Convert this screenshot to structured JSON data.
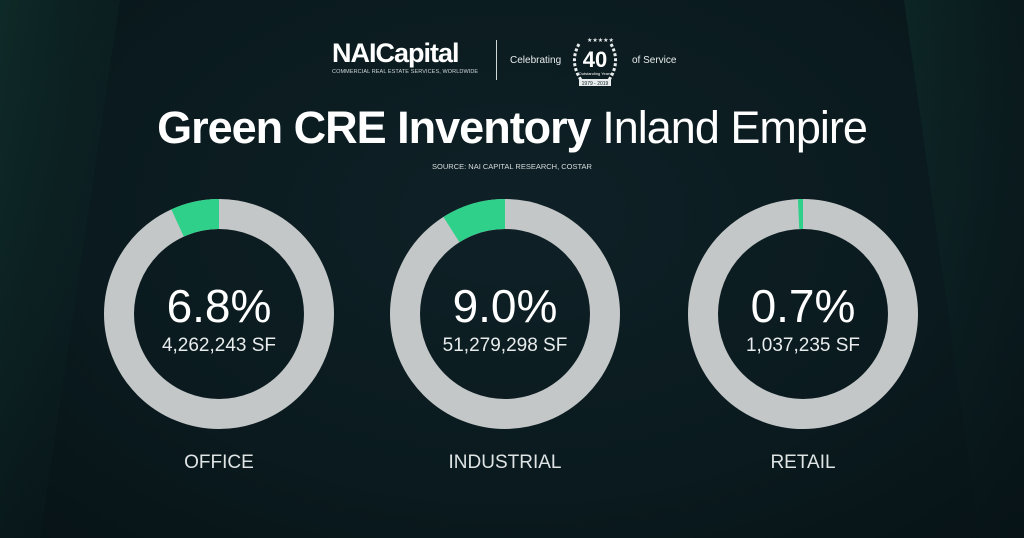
{
  "header": {
    "logo_text": "NAICapital",
    "logo_tagline": "COMMERCIAL REAL ESTATE SERVICES, WORLDWIDE",
    "celebrating": "Celebrating",
    "badge_number": "40",
    "badge_text": "Outstanding Years",
    "badge_years": "1979 - 2019",
    "of_service": "of Service"
  },
  "title_bold": "Green CRE Inventory",
  "title_light": "Inland Empire",
  "source": "SOURCE: NAI CAPITAL RESEARCH, COSTAR",
  "colors": {
    "green": "#2ed08a",
    "ring": "#c4c7c8",
    "background": "#0b1b1f"
  },
  "chart_data": {
    "type": "pie",
    "variant": "donut",
    "items": [
      {
        "category": "OFFICE",
        "percent": 6.8,
        "percent_label": "6.8%",
        "sf_label": "4,262,243 SF"
      },
      {
        "category": "INDUSTRIAL",
        "percent": 9.0,
        "percent_label": "9.0%",
        "sf_label": "51,279,298 SF"
      },
      {
        "category": "RETAIL",
        "percent": 0.7,
        "percent_label": "0.7%",
        "sf_label": "1,037,235 SF"
      }
    ]
  }
}
